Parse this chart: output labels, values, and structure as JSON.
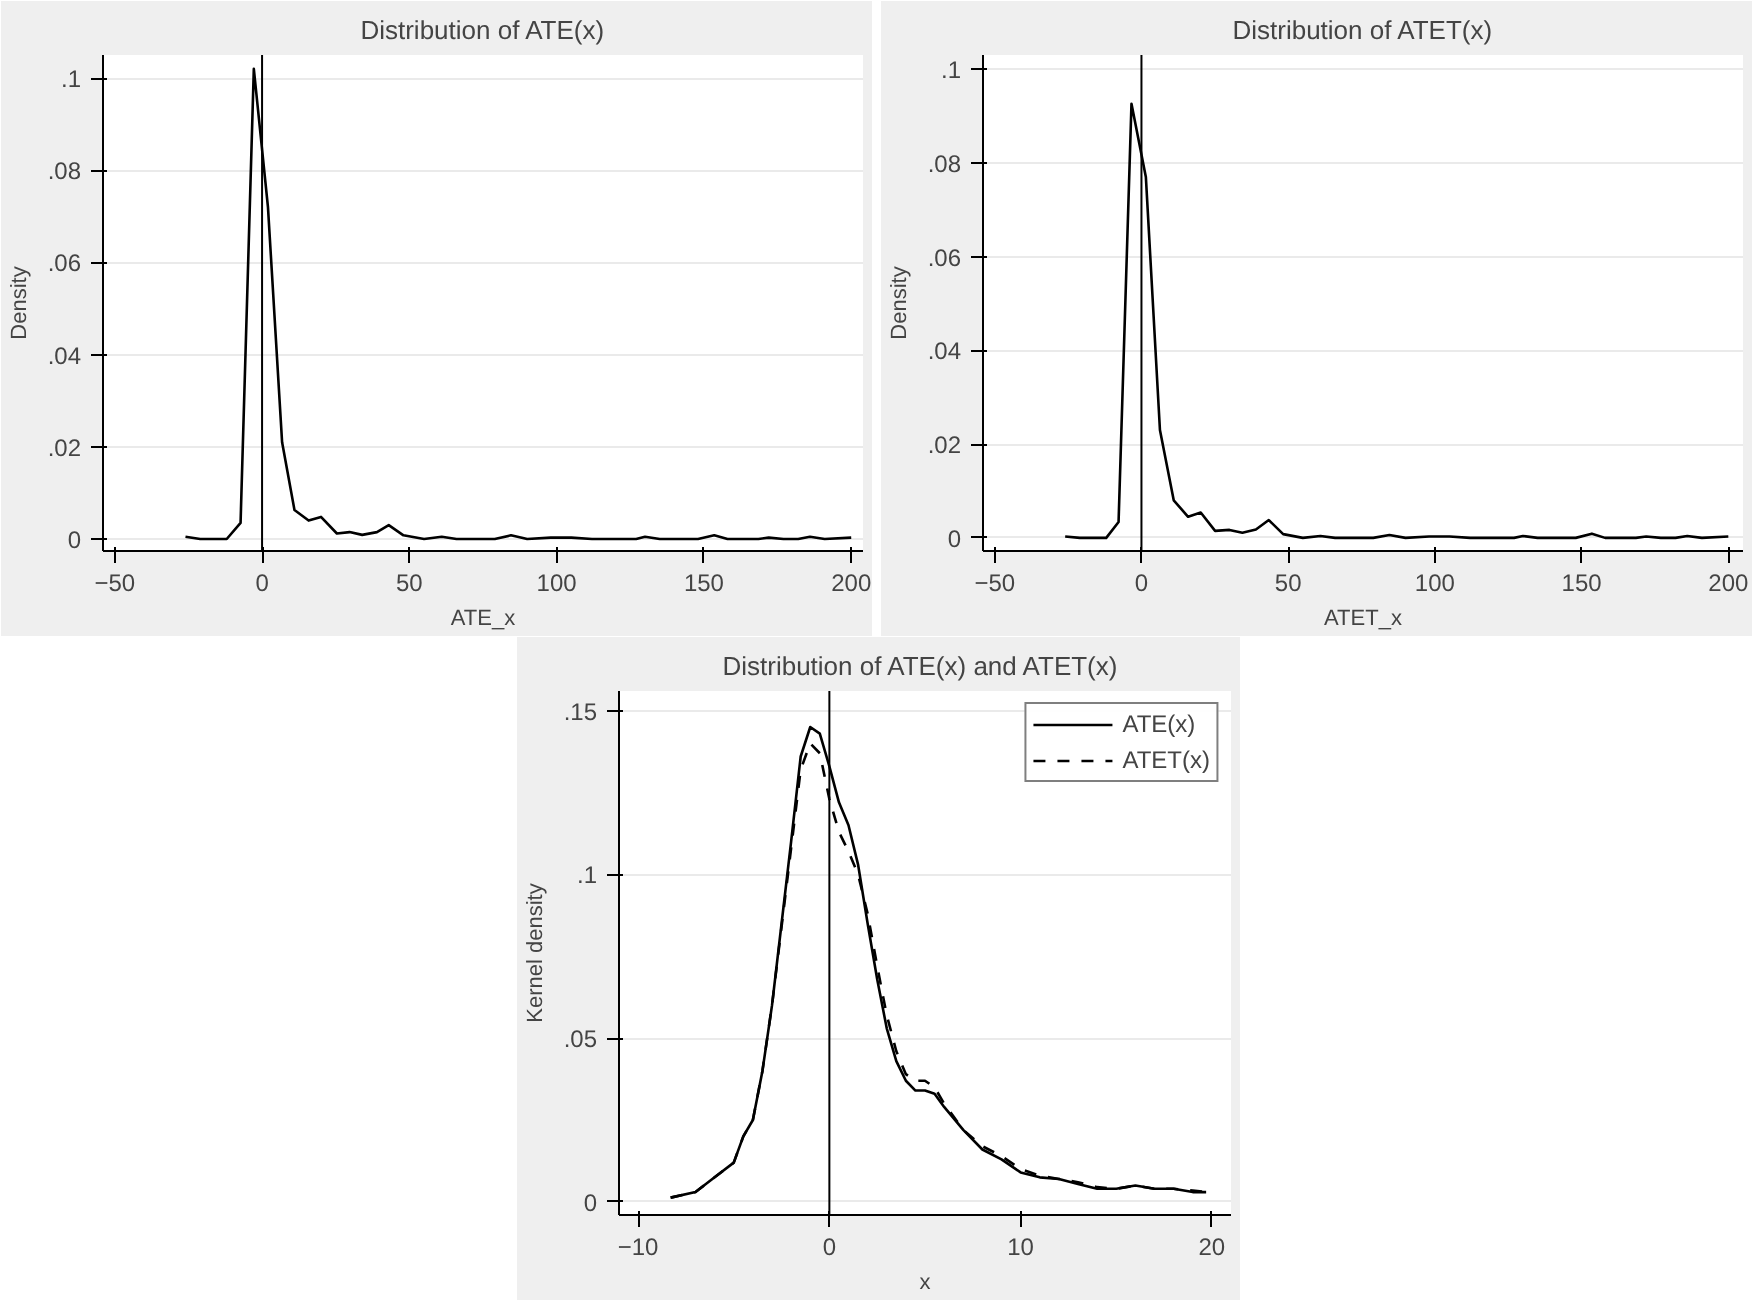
{
  "chart_data": [
    {
      "type": "line",
      "title": "Distribution of ATE(x)",
      "xlabel": "ATE_x",
      "ylabel": "Density",
      "xlim": [
        -54,
        204
      ],
      "ylim": [
        -0.0026,
        0.105
      ],
      "xticks": [
        -50,
        0,
        50,
        100,
        150,
        200
      ],
      "yticks": [
        {
          "value": 0,
          "label": "0"
        },
        {
          "value": 0.02,
          "label": ".02"
        },
        {
          "value": 0.04,
          "label": ".04"
        },
        {
          "value": 0.06,
          "label": ".06"
        },
        {
          "value": 0.08,
          "label": ".08"
        },
        {
          "value": 0.1,
          "label": ".1"
        }
      ],
      "grid": "y",
      "ref_lines": [
        {
          "axis": "x",
          "value": 0,
          "label": null
        }
      ],
      "series": [
        {
          "color": "#000000",
          "line_style": "solid",
          "x": [
            -26,
            -21,
            -12,
            -7.3,
            -2.8,
            2,
            6.8,
            11,
            15.8,
            20,
            25.4,
            29.7,
            34,
            39,
            43,
            48,
            55,
            61,
            66,
            79,
            84.5,
            90,
            98,
            105,
            112,
            127,
            130,
            135,
            148,
            153.5,
            158,
            168.5,
            172,
            177,
            182,
            186,
            191,
            200
          ],
          "values": [
            0.0005,
            0,
            0,
            0.0035,
            0.102,
            0.072,
            0.021,
            0.0063,
            0.004,
            0.0048,
            0.0012,
            0.0015,
            0.0009,
            0.0015,
            0.003,
            0.0008,
            0,
            0.0005,
            0,
            0,
            0.0008,
            0,
            0.0003,
            0.0003,
            0,
            0,
            0.0005,
            0,
            0,
            0.0008,
            0,
            0,
            0.0003,
            0,
            0,
            0.0005,
            0,
            0.0003
          ]
        }
      ]
    },
    {
      "type": "line",
      "title": "Distribution of ATET(x)",
      "xlabel": "ATET_x",
      "ylabel": "Density",
      "xlim": [
        -54,
        205
      ],
      "ylim": [
        -0.0028,
        0.103
      ],
      "xticks": [
        -50,
        0,
        50,
        100,
        150,
        200
      ],
      "yticks": [
        {
          "value": 0,
          "label": "0"
        },
        {
          "value": 0.02,
          "label": ".02"
        },
        {
          "value": 0.04,
          "label": ".04"
        },
        {
          "value": 0.06,
          "label": ".06"
        },
        {
          "value": 0.08,
          "label": ".08"
        },
        {
          "value": 0.1,
          "label": ".1"
        }
      ],
      "grid": "y",
      "ref_lines": [
        {
          "axis": "x",
          "value": 0,
          "label": null
        }
      ],
      "series": [
        {
          "color": "#000000",
          "line_style": "solid",
          "x": [
            -26,
            -21,
            -12,
            -7.8,
            -3.4,
            1.5,
            6.3,
            11,
            15.9,
            20.2,
            25.1,
            30,
            34.4,
            39,
            43.4,
            48.3,
            55,
            61,
            66,
            79,
            84.5,
            90,
            98,
            105,
            112,
            127,
            130,
            135,
            148,
            153.5,
            158,
            168.5,
            172,
            177,
            182,
            186,
            191,
            200
          ],
          "values": [
            0.0003,
            0,
            0,
            0.0034,
            0.0926,
            0.077,
            0.023,
            0.008,
            0.0045,
            0.0054,
            0.0015,
            0.0017,
            0.0011,
            0.0018,
            0.0038,
            0.0008,
            0,
            0.0004,
            0,
            0,
            0.0006,
            0,
            0.0003,
            0.0003,
            0,
            0,
            0.0004,
            0,
            0,
            0.0009,
            0,
            0,
            0.0003,
            0,
            0,
            0.0004,
            0,
            0.0003
          ]
        }
      ]
    },
    {
      "type": "line",
      "title": "Distribution of ATE(x) and  ATET(x)",
      "xlabel": "x",
      "ylabel": "Kernel density",
      "xlim": [
        -11,
        21
      ],
      "ylim": [
        -0.004,
        0.156
      ],
      "xticks": [
        -10,
        0,
        10,
        20
      ],
      "yticks": [
        {
          "value": 0,
          "label": "0"
        },
        {
          "value": 0.05,
          "label": ".05"
        },
        {
          "value": 0.1,
          "label": ".1"
        },
        {
          "value": 0.15,
          "label": ".15"
        }
      ],
      "grid": "y",
      "legend": "top right",
      "ref_lines": [
        {
          "axis": "x",
          "value": 0,
          "label": null
        }
      ],
      "series": [
        {
          "name": "ATE(x)",
          "color": "#000000",
          "line_style": "solid",
          "x": [
            -8.3,
            -7,
            -6,
            -5,
            -4.5,
            -4,
            -3.5,
            -3,
            -2.5,
            -2,
            -1.5,
            -1,
            -0.5,
            0,
            0.5,
            1,
            1.5,
            2,
            2.5,
            3,
            3.5,
            4,
            4.5,
            5,
            5.5,
            6,
            7,
            8,
            9,
            10,
            11,
            12,
            13,
            14,
            15,
            16,
            17,
            18,
            19,
            19.7
          ],
          "values": [
            0.0013,
            0.003,
            0.0075,
            0.012,
            0.02,
            0.025,
            0.04,
            0.06,
            0.085,
            0.11,
            0.136,
            0.145,
            0.143,
            0.133,
            0.122,
            0.115,
            0.103,
            0.085,
            0.068,
            0.053,
            0.043,
            0.037,
            0.034,
            0.034,
            0.033,
            0.029,
            0.022,
            0.016,
            0.013,
            0.009,
            0.0075,
            0.007,
            0.0055,
            0.004,
            0.004,
            0.005,
            0.004,
            0.004,
            0.003,
            0.003
          ]
        },
        {
          "name": "ATET(x)",
          "color": "#000000",
          "line_style": "dashed",
          "x": [
            -8.3,
            -7,
            -6,
            -5,
            -4.5,
            -4,
            -3.5,
            -3,
            -2.5,
            -2,
            -1.5,
            -1,
            -0.5,
            0,
            0.5,
            1,
            1.5,
            2,
            2.5,
            3,
            3.5,
            4,
            4.5,
            5,
            5.5,
            6,
            7,
            8,
            9,
            10,
            11,
            12,
            13,
            14,
            15,
            16,
            17,
            18,
            19,
            19.7
          ],
          "values": [
            0.0013,
            0.003,
            0.0075,
            0.012,
            0.02,
            0.025,
            0.04,
            0.06,
            0.084,
            0.108,
            0.132,
            0.14,
            0.137,
            0.123,
            0.113,
            0.107,
            0.1,
            0.088,
            0.072,
            0.057,
            0.046,
            0.039,
            0.037,
            0.037,
            0.035,
            0.03,
            0.022,
            0.017,
            0.014,
            0.01,
            0.008,
            0.007,
            0.006,
            0.0045,
            0.004,
            0.005,
            0.004,
            0.004,
            0.0035,
            0.003
          ]
        }
      ]
    }
  ]
}
